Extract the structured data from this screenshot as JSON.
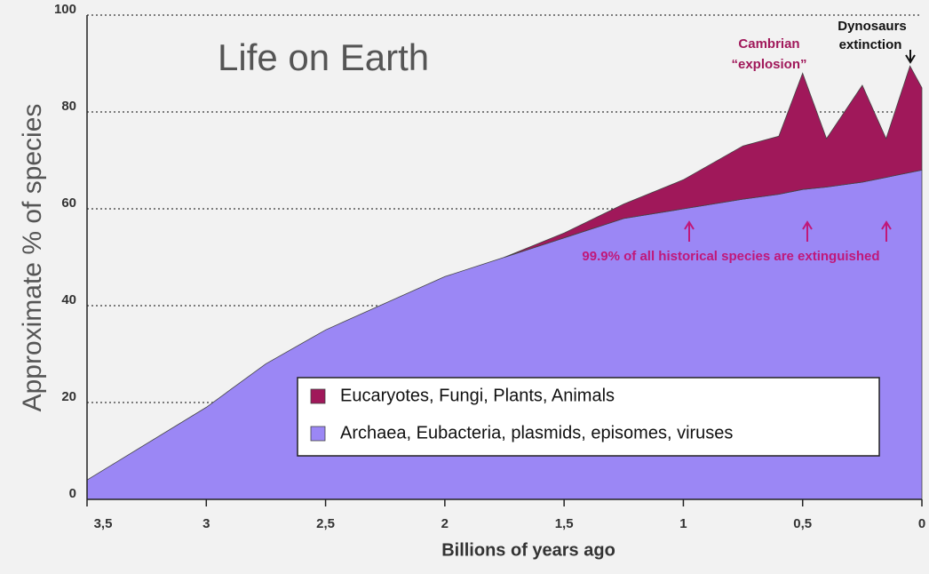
{
  "chart_data": {
    "type": "stacked-area",
    "title": "Life on Earth",
    "xlabel": "Billions of years ago",
    "ylabel": "Approximate % of species",
    "x": [
      3.5,
      3,
      2.75,
      2.5,
      2,
      1.75,
      1.5,
      1.25,
      1,
      0.75,
      0.6,
      0.5,
      0.4,
      0.25,
      0.15,
      0.05,
      0
    ],
    "series": [
      {
        "name": "Archaea, Eubacteria, plasmids, episomes, viruses",
        "color": "#9b87f5",
        "values": [
          4,
          19,
          28,
          35,
          46,
          50,
          54,
          58,
          60,
          62,
          63,
          64,
          64.5,
          65.5,
          66.5,
          67.5,
          68
        ]
      },
      {
        "name": "Eucaryotes, Fungi, Plants, Animals",
        "color": "#a0185a",
        "values": [
          null,
          null,
          null,
          null,
          null,
          0,
          1,
          3,
          6,
          11,
          12,
          24,
          10,
          20,
          8,
          22,
          17
        ]
      }
    ],
    "xlim": [
      3.5,
      0
    ],
    "xticks": [
      {
        "value": 3.5,
        "label": "3,5"
      },
      3,
      {
        "value": 2.5,
        "label": "2,5"
      },
      2,
      {
        "value": 1.5,
        "label": "1,5"
      },
      1,
      {
        "value": 0.5,
        "label": "0,5"
      },
      0
    ],
    "ylim": [
      0,
      100
    ],
    "yticks": [
      0,
      20,
      40,
      60,
      80,
      100
    ],
    "grid": true,
    "annotations": [
      "Cambrian",
      "“explosion”",
      "Dynosaurs",
      "extinction",
      "99.9% of all historical species are extinguished"
    ]
  }
}
